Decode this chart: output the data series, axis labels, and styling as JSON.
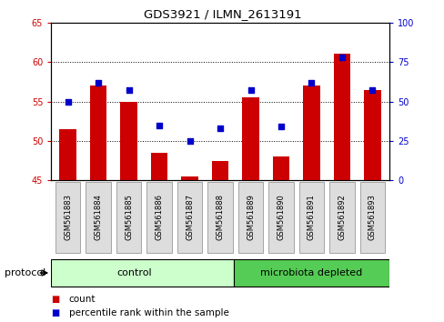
{
  "title": "GDS3921 / ILMN_2613191",
  "samples": [
    "GSM561883",
    "GSM561884",
    "GSM561885",
    "GSM561886",
    "GSM561887",
    "GSM561888",
    "GSM561889",
    "GSM561890",
    "GSM561891",
    "GSM561892",
    "GSM561893"
  ],
  "count_values": [
    51.5,
    57.0,
    55.0,
    48.5,
    45.5,
    47.5,
    55.5,
    48.0,
    57.0,
    61.0,
    56.5
  ],
  "percentile_values": [
    50,
    62,
    57,
    35,
    25,
    33,
    57,
    34,
    62,
    78,
    57
  ],
  "ylim_left": [
    45,
    65
  ],
  "ylim_right": [
    0,
    100
  ],
  "yticks_left": [
    45,
    50,
    55,
    60,
    65
  ],
  "yticks_right": [
    0,
    25,
    50,
    75,
    100
  ],
  "bar_color": "#cc0000",
  "dot_color": "#0000cc",
  "bar_bottom": 45,
  "n_control": 6,
  "n_microbiota": 5,
  "control_color": "#ccffcc",
  "microbiota_color": "#55cc55",
  "sample_box_color": "#dddddd",
  "protocol_label": "protocol",
  "control_label": "control",
  "microbiota_label": "microbiota depleted",
  "legend_count": "count",
  "legend_pct": "percentile rank within the sample",
  "tick_label_color_left": "#cc0000",
  "tick_label_color_right": "#0000cc"
}
